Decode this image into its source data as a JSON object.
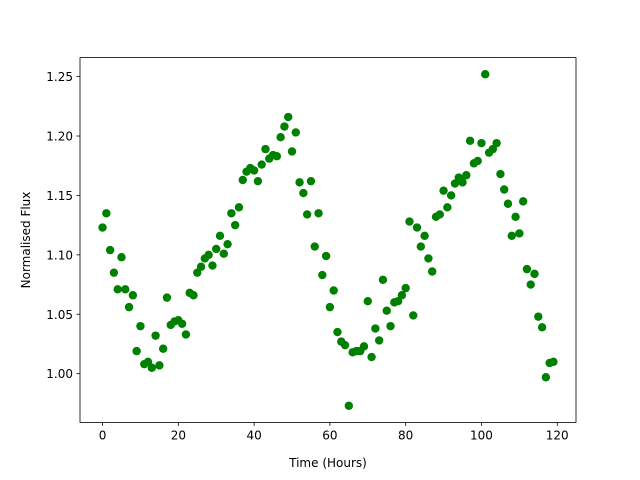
{
  "chart_data": {
    "type": "scatter",
    "xlabel": "Time (Hours)",
    "ylabel": "Normalised Flux",
    "color": "#008000",
    "x": [
      0,
      1,
      2,
      3,
      4,
      5,
      6,
      7,
      8,
      9,
      10,
      11,
      12,
      13,
      14,
      15,
      16,
      17,
      18,
      19,
      20,
      21,
      22,
      23,
      24,
      25,
      26,
      27,
      28,
      29,
      30,
      31,
      32,
      33,
      34,
      35,
      36,
      37,
      38,
      39,
      40,
      41,
      42,
      43,
      44,
      45,
      46,
      47,
      48,
      49,
      50,
      51,
      52,
      53,
      54,
      55,
      56,
      57,
      58,
      59,
      60,
      61,
      62,
      63,
      64,
      65,
      66,
      67,
      68,
      69,
      70,
      71,
      72,
      73,
      74,
      75,
      76,
      77,
      78,
      79,
      80,
      81,
      82,
      83,
      84,
      85,
      86,
      87,
      88,
      89,
      90,
      91,
      92,
      93,
      94,
      95,
      96,
      97,
      98,
      99,
      100,
      101,
      102,
      103,
      104,
      105,
      106,
      107,
      108,
      109,
      110,
      111,
      112,
      113,
      114,
      115,
      116,
      117,
      118,
      119
    ],
    "values": [
      1.123,
      1.135,
      1.104,
      1.085,
      1.071,
      1.098,
      1.071,
      1.056,
      1.066,
      1.019,
      1.04,
      1.008,
      1.01,
      1.005,
      1.032,
      1.007,
      1.021,
      1.064,
      1.041,
      1.044,
      1.045,
      1.042,
      1.033,
      1.068,
      1.066,
      1.085,
      1.09,
      1.097,
      1.1,
      1.091,
      1.105,
      1.116,
      1.101,
      1.109,
      1.135,
      1.125,
      1.14,
      1.163,
      1.17,
      1.173,
      1.171,
      1.162,
      1.176,
      1.189,
      1.181,
      1.184,
      1.183,
      1.199,
      1.208,
      1.216,
      1.187,
      1.203,
      1.161,
      1.152,
      1.134,
      1.162,
      1.107,
      1.135,
      1.083,
      1.099,
      1.056,
      1.07,
      1.035,
      1.027,
      1.024,
      0.973,
      1.018,
      1.019,
      1.019,
      1.023,
      1.061,
      1.014,
      1.038,
      1.028,
      1.079,
      1.053,
      1.04,
      1.06,
      1.061,
      1.066,
      1.072,
      1.128,
      1.049,
      1.123,
      1.107,
      1.116,
      1.097,
      1.086,
      1.132,
      1.134,
      1.154,
      1.14,
      1.15,
      1.16,
      1.165,
      1.161,
      1.167,
      1.196,
      1.177,
      1.179,
      1.194,
      1.252,
      1.186,
      1.189,
      1.194,
      1.168,
      1.155,
      1.143,
      1.116,
      1.132,
      1.118,
      1.145,
      1.088,
      1.075,
      1.084,
      1.048,
      1.039,
      0.997,
      1.009,
      1.01
    ],
    "xlim": [
      -5.95,
      124.95
    ],
    "xticks": [
      0,
      20,
      40,
      60,
      80,
      100,
      120
    ],
    "ylim": [
      0.959,
      1.266
    ],
    "yticks": [
      {
        "value": 1.0,
        "label": "1.00"
      },
      1.05,
      {
        "value": 1.1,
        "label": "1.10"
      },
      1.15,
      {
        "value": 1.2,
        "label": "1.20"
      },
      1.25
    ]
  }
}
